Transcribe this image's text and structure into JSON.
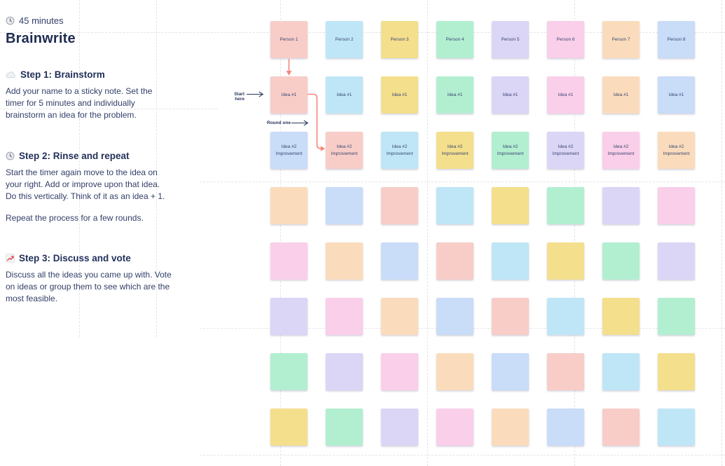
{
  "panel": {
    "duration": {
      "icon": "clock-icon",
      "text": "45 minutes"
    },
    "title": "Brainwrite",
    "steps": [
      {
        "icon": "cloud-icon",
        "heading": "Step 1: Brainstorm",
        "paragraphs": [
          [
            "Add your name to a sticky note. Set the",
            "timer for 5 minutes and individually",
            "brainstorm an idea for the problem."
          ]
        ]
      },
      {
        "icon": "clock-icon",
        "heading": "Step 2: Rinse and repeat",
        "paragraphs": [
          [
            "Start the timer again move to the idea on",
            "your right. Add or improve upon that idea.",
            "Do this vertically. Think of it as an idea + 1."
          ],
          [
            "Repeat the process for a few rounds."
          ]
        ]
      },
      {
        "icon": "chart-increasing-icon",
        "heading": "Step 3: Discuss and vote",
        "paragraphs": [
          [
            "Discuss all the ideas you came up with. Vote",
            "on ideas or group them to see which are the",
            "most feasible."
          ]
        ]
      }
    ]
  },
  "canvas": {
    "annotations": {
      "start_label": "Start here",
      "round_label": "Round one"
    },
    "connector_color": "#F5857A",
    "label_color": "#2A3660",
    "palette": {
      "salmon": "#F8CDC8",
      "cyan": "#BFE6F6",
      "yellow": "#F4DF8D",
      "green": "#B2EFD1",
      "lavender": "#DBD5F6",
      "magenta": "#FACFE9",
      "peach": "#FADCBC",
      "periwinkle": "#C9DCF8"
    },
    "grid_rows": [
      {
        "texts": [
          "Person 1",
          "Person 2",
          "Person 3",
          "Person 4",
          "Person 5",
          "Person 6",
          "Person 7",
          "Person 8"
        ],
        "colors": [
          "salmon",
          "cyan",
          "yellow",
          "green",
          "lavender",
          "magenta",
          "peach",
          "periwinkle"
        ]
      },
      {
        "texts": [
          "Idea #1",
          "Idea #1",
          "Idea #1",
          "Idea #1",
          "Idea #1",
          "Idea #1",
          "Idea #1",
          "Idea #1"
        ],
        "colors": [
          "salmon",
          "cyan",
          "yellow",
          "green",
          "lavender",
          "magenta",
          "peach",
          "periwinkle"
        ]
      },
      {
        "texts": [
          "Idea #2\nImprovement",
          "Idea #2\nImprovement",
          "Idea #2\nImprovement",
          "Idea #2\nImprovement",
          "Idea #2\nImprovement",
          "Idea #2\nImprovement",
          "Idea #2\nImprovement",
          "Idea #2\nImprovement"
        ],
        "colors": [
          "periwinkle",
          "salmon",
          "cyan",
          "yellow",
          "green",
          "lavender",
          "magenta",
          "peach"
        ]
      },
      {
        "texts": [
          "",
          "",
          "",
          "",
          "",
          "",
          "",
          ""
        ],
        "colors": [
          "peach",
          "periwinkle",
          "salmon",
          "cyan",
          "yellow",
          "green",
          "lavender",
          "magenta"
        ]
      },
      {
        "texts": [
          "",
          "",
          "",
          "",
          "",
          "",
          "",
          ""
        ],
        "colors": [
          "magenta",
          "peach",
          "periwinkle",
          "salmon",
          "cyan",
          "yellow",
          "green",
          "lavender"
        ]
      },
      {
        "texts": [
          "",
          "",
          "",
          "",
          "",
          "",
          "",
          ""
        ],
        "colors": [
          "lavender",
          "magenta",
          "peach",
          "periwinkle",
          "salmon",
          "cyan",
          "yellow",
          "green"
        ]
      },
      {
        "texts": [
          "",
          "",
          "",
          "",
          "",
          "",
          "",
          ""
        ],
        "colors": [
          "green",
          "lavender",
          "magenta",
          "peach",
          "periwinkle",
          "salmon",
          "cyan",
          "yellow"
        ]
      },
      {
        "texts": [
          "",
          "",
          "",
          "",
          "",
          "",
          "",
          ""
        ],
        "colors": [
          "yellow",
          "green",
          "lavender",
          "magenta",
          "peach",
          "periwinkle",
          "salmon",
          "cyan"
        ]
      }
    ]
  }
}
